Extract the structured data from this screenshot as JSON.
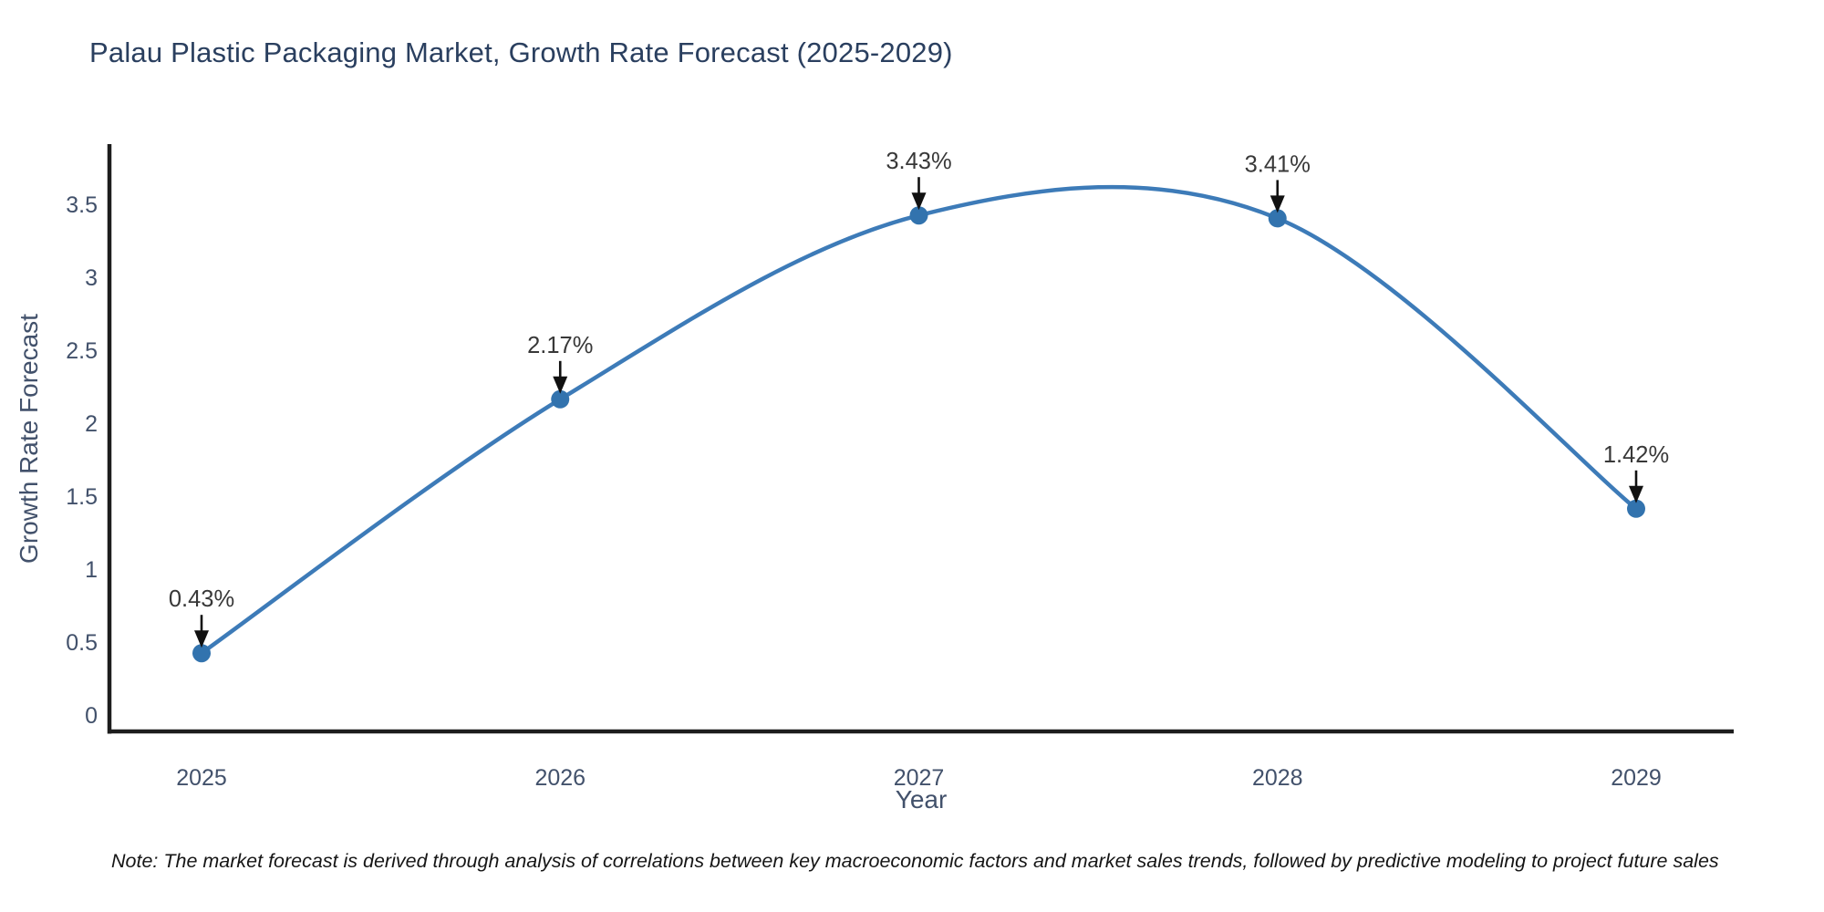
{
  "figure": {
    "title": "Palau Plastic Packaging Market, Growth Rate Forecast (2025-2029)",
    "note": "Note: The market forecast is derived through analysis of correlations between key macroeconomic factors and market sales trends, followed by predictive modeling to project future sales"
  },
  "chart_data": {
    "type": "line",
    "title": "Palau Plastic Packaging Market, Growth Rate Forecast (2025-2029)",
    "xlabel": "Year",
    "ylabel": "Growth Rate Forecast",
    "categories": [
      "2025",
      "2026",
      "2027",
      "2028",
      "2029"
    ],
    "series": [
      {
        "name": "Growth Rate Forecast (%)",
        "values": [
          0.43,
          2.17,
          3.43,
          3.41,
          1.42
        ],
        "point_labels": [
          "0.43%",
          "2.17%",
          "3.43%",
          "3.41%",
          "1.42%"
        ]
      }
    ],
    "yticks": [
      "0",
      "0.5",
      "1",
      "1.5",
      "2",
      "2.5",
      "3",
      "3.5"
    ],
    "ytick_values": [
      0,
      0.5,
      1,
      1.5,
      2,
      2.5,
      3,
      3.5
    ],
    "ylim": [
      0,
      4.05
    ],
    "line_shape": "spline",
    "grid": false,
    "legend_position": "none",
    "annotation_style": "value label with downward arrow above each data point",
    "colors": {
      "line": "#3d7bb8",
      "marker": "#3273ae",
      "axis": "#1d1d1d",
      "tick_label": "#42516b",
      "axis_title": "#42516b",
      "chart_title": "#2a3f5f",
      "annotation_text": "#383838",
      "annotation_arrow": "#111111",
      "background": "#ffffff"
    }
  }
}
